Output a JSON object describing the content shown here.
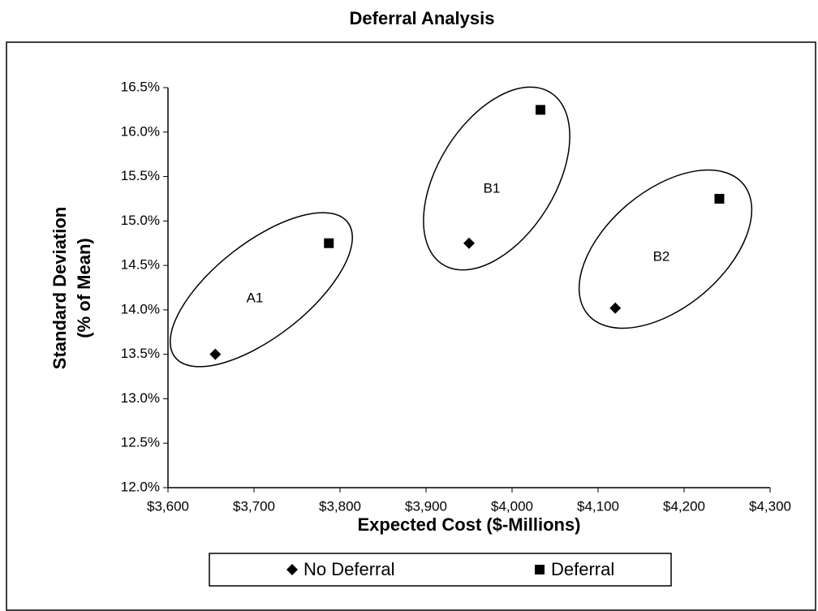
{
  "chart_data": {
    "type": "scatter",
    "title": "Deferral Analysis",
    "x_label": "Expected Cost ($-Millions)",
    "y_label": [
      "Standard Deviation",
      "(% of Mean)"
    ],
    "series": [
      {
        "name": "No Deferral",
        "color": "#000000",
        "marker": "diamond",
        "x": [
          3655,
          3950,
          4120
        ],
        "values": [
          13.5,
          14.75,
          14.02
        ]
      },
      {
        "name": "Deferral",
        "color": "#000000",
        "marker": "square",
        "x": [
          3787,
          4033,
          4241
        ],
        "values": [
          14.75,
          16.25,
          15.25
        ]
      }
    ],
    "annotations": [
      "A1",
      "B1",
      "B2"
    ],
    "xlim": [
      3600,
      4300
    ],
    "xticks": [
      {
        "value": 3600,
        "label": "$3,600"
      },
      {
        "value": 3700,
        "label": "$3,700"
      },
      {
        "value": 3800,
        "label": "$3,800"
      },
      {
        "value": 3900,
        "label": "$3,900"
      },
      {
        "value": 4000,
        "label": "$4,000"
      },
      {
        "value": 4100,
        "label": "$4,100"
      },
      {
        "value": 4200,
        "label": "$4,200"
      },
      {
        "value": 4300,
        "label": "$4,300"
      }
    ],
    "ylim": [
      12,
      16.5
    ],
    "yticks": [
      {
        "value": 12,
        "label": "12.0%"
      },
      {
        "value": 12.5,
        "label": "12.5%"
      },
      {
        "value": 13,
        "label": "13.0%"
      },
      {
        "value": 13.5,
        "label": "13.5%"
      },
      {
        "value": 14,
        "label": "14.0%"
      },
      {
        "value": 14.5,
        "label": "14.5%"
      },
      {
        "value": 15,
        "label": "15.0%"
      },
      {
        "value": 15.5,
        "label": "15.5%"
      },
      {
        "value": 16,
        "label": "16.0%"
      },
      {
        "value": 16.5,
        "label": "16.5%"
      }
    ],
    "grid": false,
    "legend": "bottom"
  }
}
